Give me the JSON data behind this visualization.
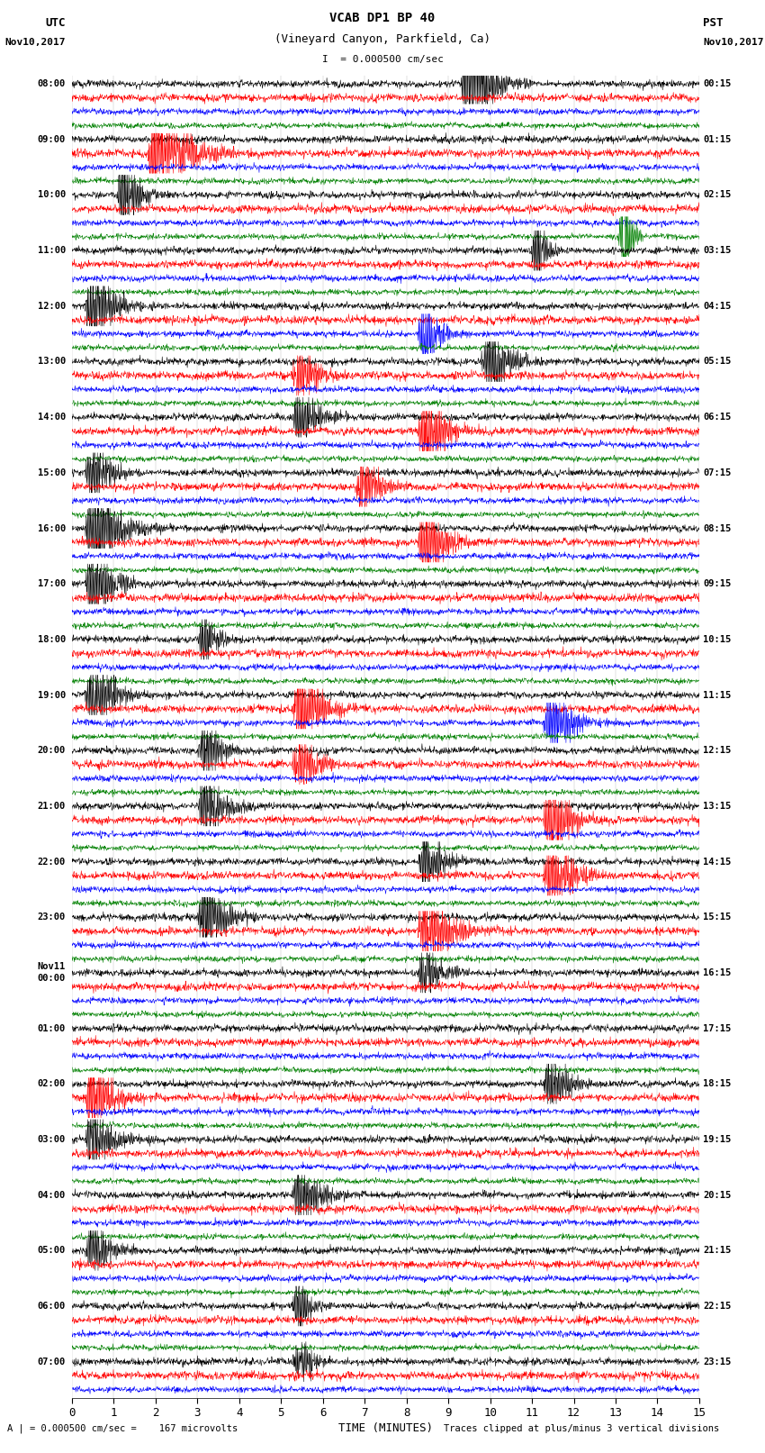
{
  "title_line1": "VCAB DP1 BP 40",
  "title_line2": "(Vineyard Canyon, Parkfield, Ca)",
  "scale_text": "I  = 0.000500 cm/sec",
  "bottom_label1": "A | = 0.000500 cm/sec =    167 microvolts",
  "bottom_label2": "Traces clipped at plus/minus 3 vertical divisions",
  "xlabel": "TIME (MINUTES)",
  "xticks": [
    0,
    1,
    2,
    3,
    4,
    5,
    6,
    7,
    8,
    9,
    10,
    11,
    12,
    13,
    14,
    15
  ],
  "utc_labels": [
    "08:00",
    "",
    "",
    "",
    "09:00",
    "",
    "",
    "",
    "10:00",
    "",
    "",
    "",
    "11:00",
    "",
    "",
    "",
    "12:00",
    "",
    "",
    "",
    "13:00",
    "",
    "",
    "",
    "14:00",
    "",
    "",
    "",
    "15:00",
    "",
    "",
    "",
    "16:00",
    "",
    "",
    "",
    "17:00",
    "",
    "",
    "",
    "18:00",
    "",
    "",
    "",
    "19:00",
    "",
    "",
    "",
    "20:00",
    "",
    "",
    "",
    "21:00",
    "",
    "",
    "",
    "22:00",
    "",
    "",
    "",
    "23:00",
    "",
    "",
    "",
    "Nov11\n00:00",
    "",
    "",
    "",
    "01:00",
    "",
    "",
    "",
    "02:00",
    "",
    "",
    "",
    "03:00",
    "",
    "",
    "",
    "04:00",
    "",
    "",
    "",
    "05:00",
    "",
    "",
    "",
    "06:00",
    "",
    "",
    "",
    "07:00",
    "",
    ""
  ],
  "pst_labels": [
    "00:15",
    "",
    "",
    "",
    "01:15",
    "",
    "",
    "",
    "02:15",
    "",
    "",
    "",
    "03:15",
    "",
    "",
    "",
    "04:15",
    "",
    "",
    "",
    "05:15",
    "",
    "",
    "",
    "06:15",
    "",
    "",
    "",
    "07:15",
    "",
    "",
    "",
    "08:15",
    "",
    "",
    "",
    "09:15",
    "",
    "",
    "",
    "10:15",
    "",
    "",
    "",
    "11:15",
    "",
    "",
    "",
    "12:15",
    "",
    "",
    "",
    "13:15",
    "",
    "",
    "",
    "14:15",
    "",
    "",
    "",
    "15:15",
    "",
    "",
    "",
    "16:15",
    "",
    "",
    "",
    "17:15",
    "",
    "",
    "",
    "18:15",
    "",
    "",
    "",
    "19:15",
    "",
    "",
    "",
    "20:15",
    "",
    "",
    "",
    "21:15",
    "",
    "",
    "",
    "22:15",
    "",
    "",
    "",
    "23:15",
    "",
    ""
  ],
  "colors": [
    "black",
    "red",
    "blue",
    "green"
  ],
  "n_rows": 95,
  "n_minutes": 15,
  "bg_color": "white",
  "clip_level": 3.0,
  "left_header": "UTC\nNov10,2017",
  "right_header": "PST\nNov10,2017"
}
